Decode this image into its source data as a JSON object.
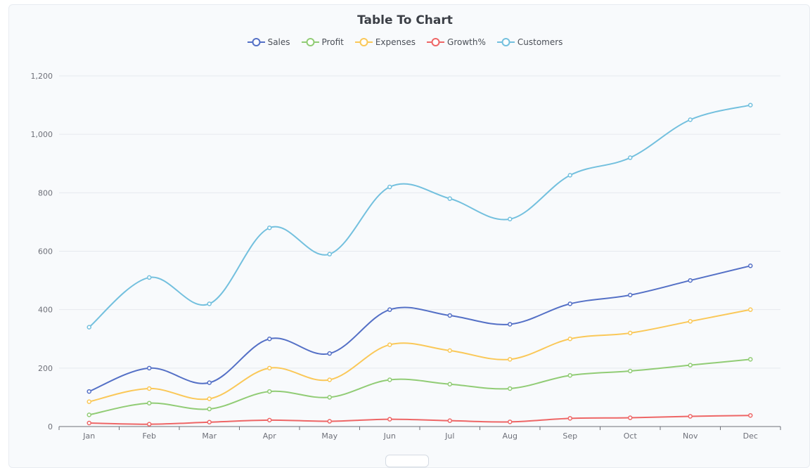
{
  "chart_data": {
    "type": "line",
    "title": "Table To Chart",
    "smooth": true,
    "categories": [
      "Jan",
      "Feb",
      "Mar",
      "Apr",
      "May",
      "Jun",
      "Jul",
      "Aug",
      "Sep",
      "Oct",
      "Nov",
      "Dec"
    ],
    "series": [
      {
        "name": "Sales",
        "color": "#5470c6",
        "values": [
          120,
          200,
          150,
          300,
          250,
          400,
          380,
          350,
          420,
          450,
          500,
          550
        ]
      },
      {
        "name": "Profit",
        "color": "#91cc75",
        "values": [
          40,
          80,
          60,
          120,
          100,
          160,
          145,
          130,
          175,
          190,
          210,
          230
        ]
      },
      {
        "name": "Expenses",
        "color": "#fac858",
        "values": [
          85,
          130,
          95,
          200,
          160,
          280,
          260,
          230,
          300,
          320,
          360,
          400
        ]
      },
      {
        "name": "Growth%",
        "color": "#ee6666",
        "values": [
          12,
          8,
          15,
          22,
          18,
          25,
          20,
          16,
          28,
          30,
          35,
          38
        ]
      },
      {
        "name": "Customers",
        "color": "#73c0de",
        "values": [
          340,
          510,
          420,
          680,
          590,
          820,
          780,
          710,
          860,
          920,
          1050,
          1100
        ]
      }
    ],
    "ylim": [
      0,
      1200
    ],
    "yticks": [
      0,
      200,
      400,
      600,
      800,
      1000,
      1200
    ],
    "ytick_labels": [
      "0",
      "200",
      "400",
      "600",
      "800",
      "1,000",
      "1,200"
    ],
    "grid": true,
    "legend_position": "top-center"
  }
}
